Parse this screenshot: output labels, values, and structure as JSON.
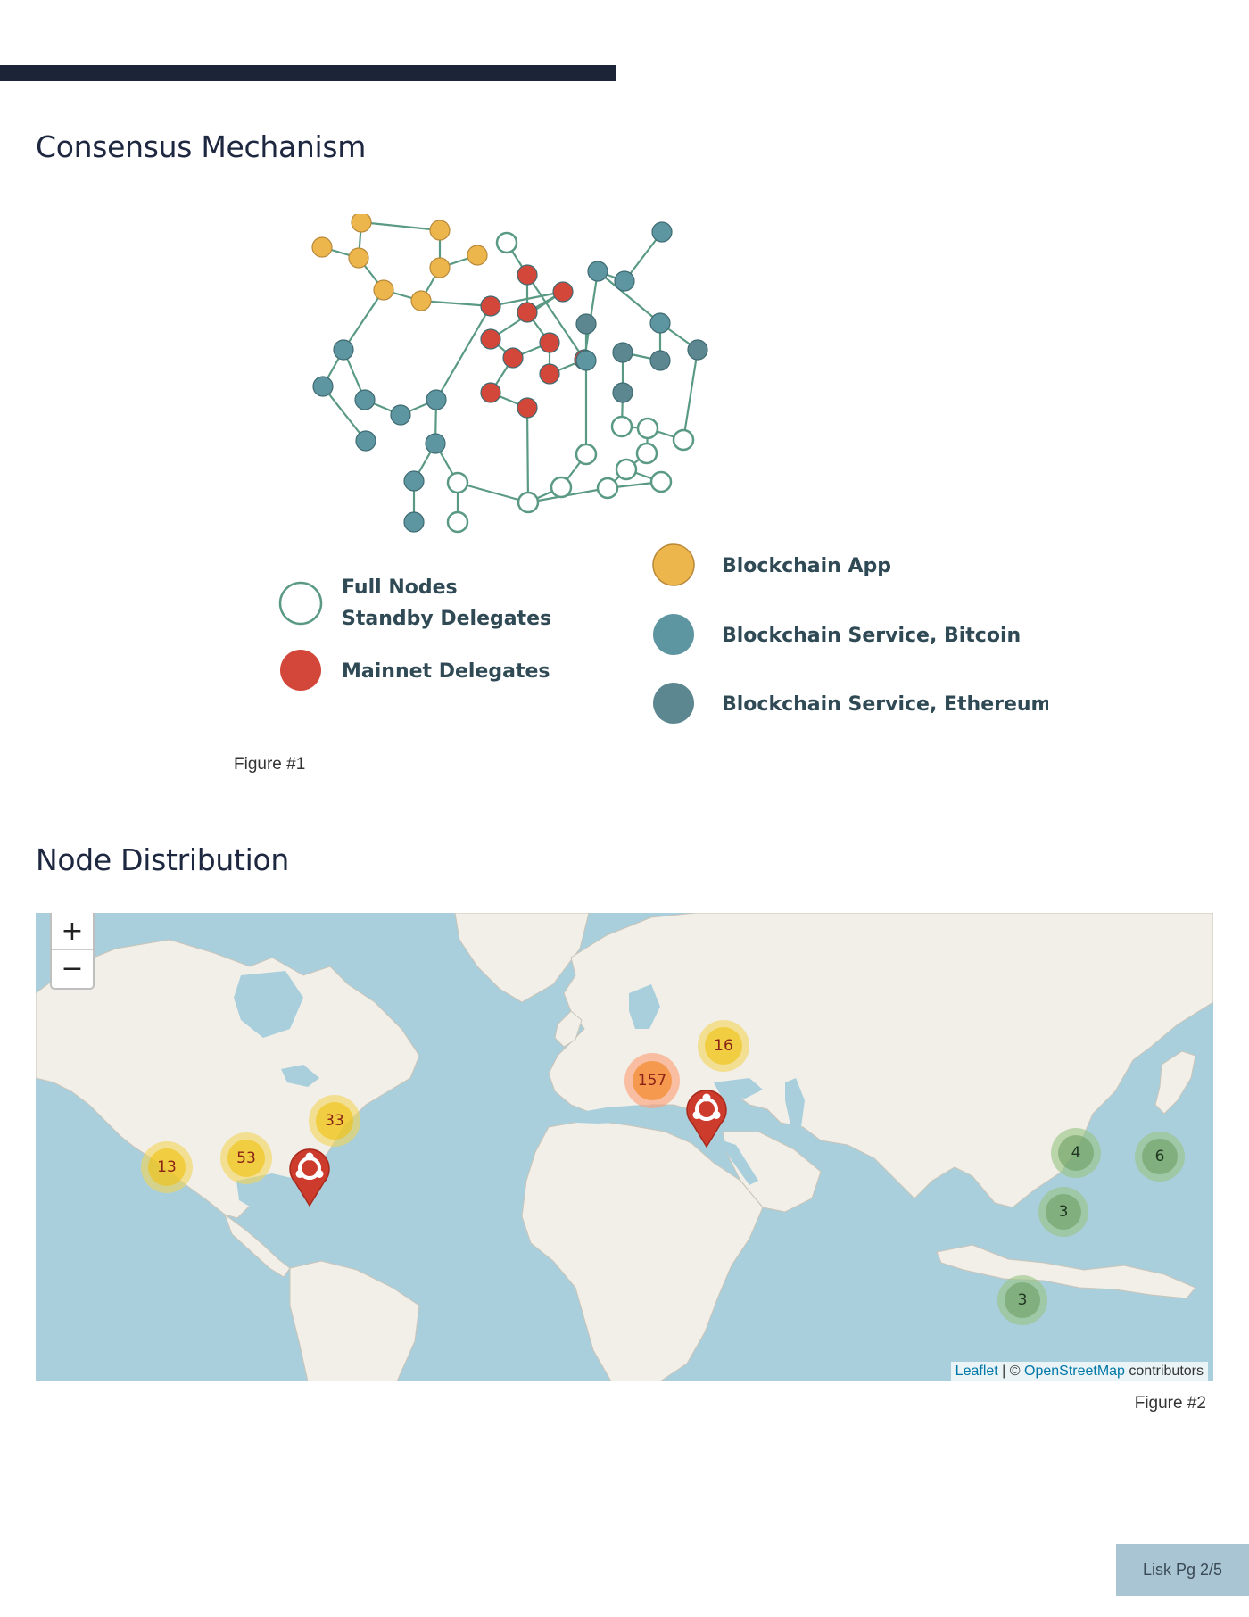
{
  "sections": {
    "consensus": {
      "title": "Consensus Mechanism",
      "figure_caption": "Figure #1"
    },
    "distribution": {
      "title": "Node Distribution",
      "figure_caption": "Figure #2"
    }
  },
  "legend": {
    "full_nodes": "Full Nodes",
    "standby_delegates": "Standby Delegates",
    "mainnet_delegates": "Mainnet Delegates",
    "blockchain_app": "Blockchain App",
    "service_bitcoin": "Blockchain Service, Bitcoin",
    "service_ethereum": "Blockchain Service, Ethereum"
  },
  "colors": {
    "full_node": "#ffffff",
    "mainnet": "#d2473a",
    "app": "#edb64c",
    "bitcoin": "#5d95a1",
    "ethereum": "#5d8790",
    "edge": "#5a9a84"
  },
  "map": {
    "zoom_in": "+",
    "zoom_out": "−",
    "attribution_leaflet": "Leaflet",
    "attribution_sep": " | © ",
    "attribution_osm": "OpenStreetMap",
    "attribution_tail": " contributors",
    "clusters": [
      {
        "count": "13",
        "color": "yellow"
      },
      {
        "count": "53",
        "color": "yellow"
      },
      {
        "count": "33",
        "color": "yellow"
      },
      {
        "count": "157",
        "color": "orange"
      },
      {
        "count": "16",
        "color": "yellow"
      },
      {
        "count": "4",
        "color": "green"
      },
      {
        "count": "6",
        "color": "green"
      },
      {
        "count": "3",
        "color": "green"
      },
      {
        "count": "3",
        "color": "green"
      }
    ],
    "markers": [
      {
        "icon": "ubuntu-icon",
        "region": "North America east coast"
      },
      {
        "icon": "ubuntu-icon",
        "region": "Southeast Europe"
      }
    ]
  },
  "footer": {
    "page_label": "Lisk Pg 2/5"
  }
}
